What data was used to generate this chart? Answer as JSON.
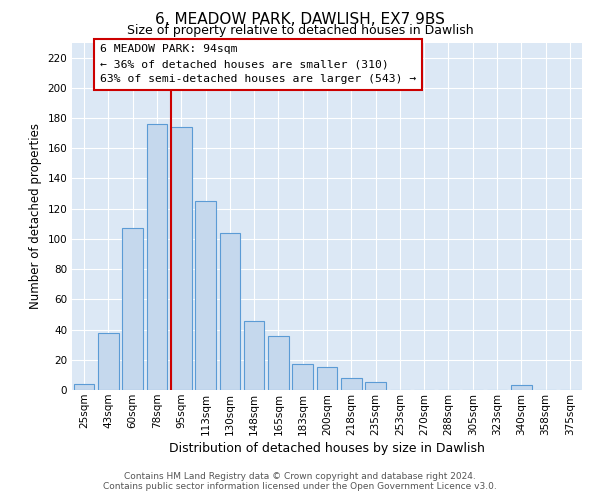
{
  "title": "6, MEADOW PARK, DAWLISH, EX7 9BS",
  "subtitle": "Size of property relative to detached houses in Dawlish",
  "xlabel": "Distribution of detached houses by size in Dawlish",
  "ylabel": "Number of detached properties",
  "bar_labels": [
    "25sqm",
    "43sqm",
    "60sqm",
    "78sqm",
    "95sqm",
    "113sqm",
    "130sqm",
    "148sqm",
    "165sqm",
    "183sqm",
    "200sqm",
    "218sqm",
    "235sqm",
    "253sqm",
    "270sqm",
    "288sqm",
    "305sqm",
    "323sqm",
    "340sqm",
    "358sqm",
    "375sqm"
  ],
  "bar_values": [
    4,
    38,
    107,
    176,
    174,
    125,
    104,
    46,
    36,
    17,
    15,
    8,
    5,
    0,
    0,
    0,
    0,
    0,
    3,
    0,
    0
  ],
  "bar_color": "#c5d8ed",
  "bar_edge_color": "#5b9bd5",
  "ylim": [
    0,
    230
  ],
  "yticks": [
    0,
    20,
    40,
    60,
    80,
    100,
    120,
    140,
    160,
    180,
    200,
    220
  ],
  "vline_x_index": 4,
  "vline_color": "#cc0000",
  "annotation_title": "6 MEADOW PARK: 94sqm",
  "annotation_line1": "← 36% of detached houses are smaller (310)",
  "annotation_line2": "63% of semi-detached houses are larger (543) →",
  "footer1": "Contains HM Land Registry data © Crown copyright and database right 2024.",
  "footer2": "Contains public sector information licensed under the Open Government Licence v3.0.",
  "plot_bg_color": "#dce8f5",
  "fig_bg_color": "#ffffff",
  "grid_color": "#ffffff",
  "title_fontsize": 11,
  "subtitle_fontsize": 9,
  "ylabel_fontsize": 8.5,
  "xlabel_fontsize": 9,
  "footer_fontsize": 6.5,
  "annotation_fontsize": 8.2,
  "tick_fontsize": 7.5
}
